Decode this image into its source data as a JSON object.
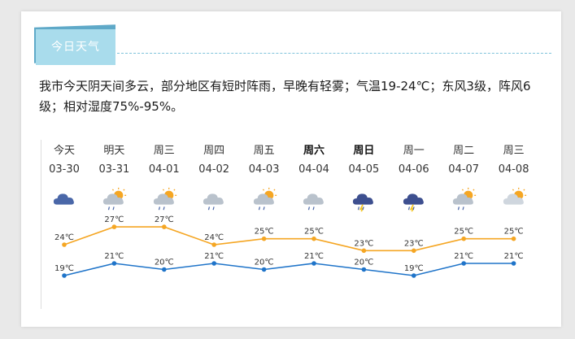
{
  "section": {
    "title": "今日天气"
  },
  "summary": "我市今天阴天间多云，部分地区有短时阵雨，早晚有轻雾；气温19-24℃；东风3级，阵风6级；相对湿度75%-95%。",
  "colors": {
    "high_line": "#f5a623",
    "low_line": "#1f74c9"
  },
  "forecast": [
    {
      "label": "今天",
      "date": "03-30",
      "icon": "overcast-icon",
      "bold": false,
      "high": "24℃",
      "low": "19℃",
      "hi": 24,
      "lo": 19
    },
    {
      "label": "明天",
      "date": "03-31",
      "icon": "sun-cloud-shower-icon",
      "bold": false,
      "high": "27℃",
      "low": "21℃",
      "hi": 27,
      "lo": 21
    },
    {
      "label": "周三",
      "date": "04-01",
      "icon": "sun-cloud-shower-icon",
      "bold": false,
      "high": "27℃",
      "low": "20℃",
      "hi": 27,
      "lo": 20
    },
    {
      "label": "周四",
      "date": "04-02",
      "icon": "cloud-rain-icon",
      "bold": false,
      "high": "24℃",
      "low": "21℃",
      "hi": 24,
      "lo": 21
    },
    {
      "label": "周五",
      "date": "04-03",
      "icon": "sun-cloud-shower-icon",
      "bold": false,
      "high": "25℃",
      "low": "20℃",
      "hi": 25,
      "lo": 20
    },
    {
      "label": "周六",
      "date": "04-04",
      "icon": "cloud-rain-icon",
      "bold": true,
      "high": "25℃",
      "low": "21℃",
      "hi": 25,
      "lo": 21
    },
    {
      "label": "周日",
      "date": "04-05",
      "icon": "thunderstorm-icon",
      "bold": true,
      "high": "23℃",
      "low": "20℃",
      "hi": 23,
      "lo": 20
    },
    {
      "label": "周一",
      "date": "04-06",
      "icon": "thunderstorm-icon",
      "bold": false,
      "high": "23℃",
      "low": "19℃",
      "hi": 23,
      "lo": 19
    },
    {
      "label": "周二",
      "date": "04-07",
      "icon": "sun-cloud-shower-icon",
      "bold": false,
      "high": "25℃",
      "low": "21℃",
      "hi": 25,
      "lo": 21
    },
    {
      "label": "周三",
      "date": "04-08",
      "icon": "sun-cloud-icon",
      "bold": false,
      "high": "25℃",
      "low": "21℃",
      "hi": 25,
      "lo": 21
    }
  ]
}
